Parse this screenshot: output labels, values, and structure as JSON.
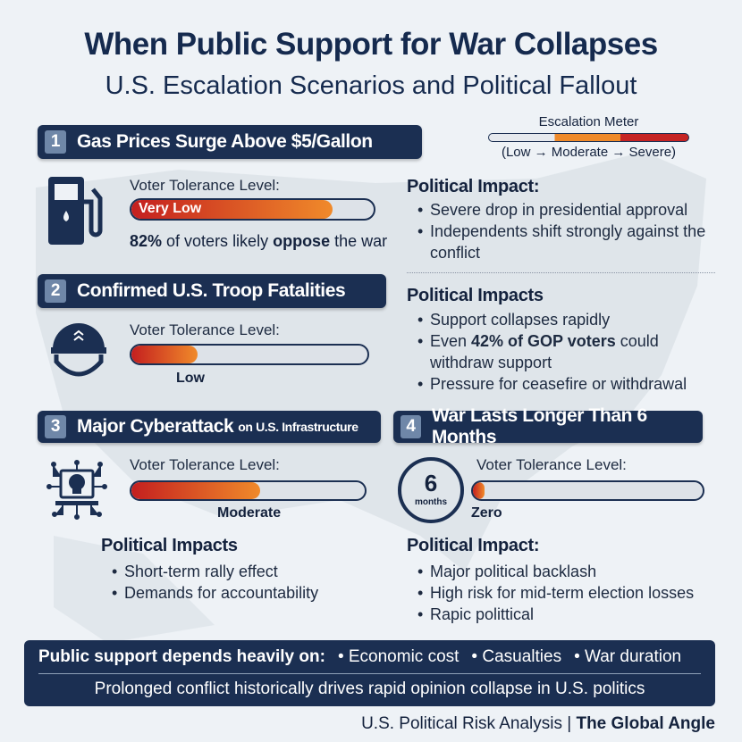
{
  "title": "When Public Support for War Collapses",
  "subtitle": "U.S. Escalation Scenarios and Political Fallout",
  "meter": {
    "label": "Escalation Meter",
    "legend": "(Low → Moderate → Severe)"
  },
  "colors": {
    "navy": "#1b2f52",
    "red": "#c41f1f",
    "orange": "#f08a2a"
  },
  "tolerance_label": "Voter Tolerance Level:",
  "scenarios": [
    {
      "num": "1",
      "title": "Gas Prices Surge Above $5/Gallon",
      "icon": "gas-pump-icon",
      "level": "Very Low",
      "level_pct": 83,
      "stat_value": "82%",
      "stat_mid": " of voters likely ",
      "stat_bold": "oppose",
      "stat_end": " the war",
      "impact_title": "Political Impact:",
      "impacts": [
        "Severe drop in presidential approval",
        "Independents shift strongly against the conflict"
      ]
    },
    {
      "num": "2",
      "title": "Confirmed U.S. Troop Fatalities",
      "icon": "helmet-icon",
      "level": "Low",
      "level_pct": 28,
      "impact_title": "Political Impacts",
      "impacts": [
        "Support collapses rapidly"
      ],
      "impact2_pre": "Even ",
      "impact2_bold": "42% of GOP voters",
      "impact2_post": " could withdraw support",
      "impact3": "Pressure for ceasefire or withdrawal"
    },
    {
      "num": "3",
      "title": "Major Cyberattack",
      "title_small": "on U.S. Infrastructure",
      "icon": "cyber-skull-laptop-icon",
      "level": "Moderate",
      "level_pct": 55,
      "impact_title": "Political Impacts",
      "impacts": [
        "Short-term rally effect",
        "Demands for accountability"
      ]
    },
    {
      "num": "4",
      "title": "War Lasts Longer Than 6 Months",
      "icon": "clock-icon",
      "clock_num": "6",
      "clock_unit": "months",
      "level": "Zero",
      "level_pct": 5,
      "impact_title": "Political Impact:",
      "impacts": [
        "Major political backlash",
        "High risk for mid-term election losses",
        "Rapic polittical"
      ]
    }
  ],
  "footer": {
    "lead": "Public support depends heavily on:",
    "factors": [
      "Economic cost",
      "Casualties",
      "War duration"
    ],
    "note": "Prolonged conflict historically drives rapid opinion collapse in U.S. politics"
  },
  "source": {
    "text": "U.S. Political Risk Analysis | ",
    "brand": "The Global Angle"
  }
}
